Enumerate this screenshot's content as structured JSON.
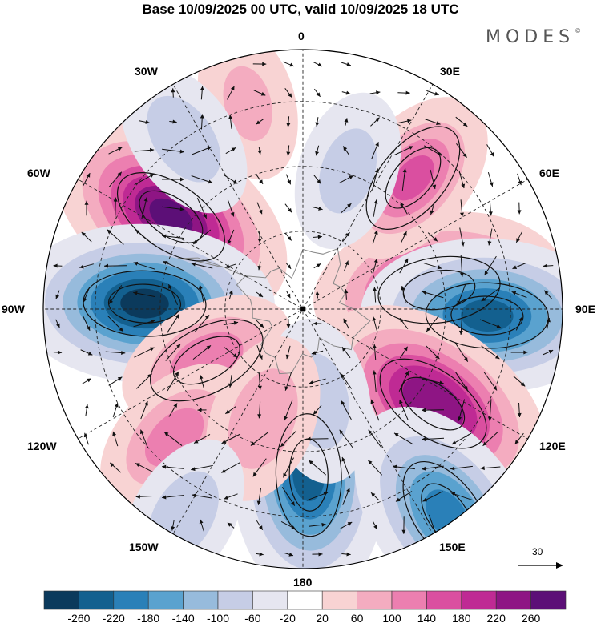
{
  "title": "Base 10/09/2025 00 UTC, valid 10/09/2025 18 UTC",
  "brand": {
    "name": "MODES",
    "mark": "©"
  },
  "longitude_labels": {
    "lon_0": "0",
    "lon_30e": "30E",
    "lon_60e": "60E",
    "lon_90e": "90E",
    "lon_120e": "120E",
    "lon_150e": "150E",
    "lon_180": "180",
    "lon_150w": "150W",
    "lon_120w": "120W",
    "lon_90w": "90W",
    "lon_60w": "60W",
    "lon_30w": "30W"
  },
  "reference_vector": {
    "label": "30"
  },
  "colorbar": {
    "ticks": [
      "-260",
      "-220",
      "-180",
      "-140",
      "-100",
      "-60",
      "-20",
      "20",
      "60",
      "100",
      "140",
      "180",
      "220",
      "260"
    ],
    "colors": [
      "#0b3a5c",
      "#13608f",
      "#2a80b8",
      "#5aa2cf",
      "#97bbdc",
      "#c6cde6",
      "#e6e6f0",
      "#ffffff",
      "#f8d3d3",
      "#f4acc0",
      "#ec7fb0",
      "#da4fa0",
      "#bf2a94",
      "#8e1584",
      "#5c0f77"
    ]
  },
  "field": {
    "projection": "south polar stereographic",
    "features": [
      {
        "name": "positive-anomaly",
        "sign": 1,
        "peak": 260,
        "lon": -55,
        "colat": 0.62
      },
      {
        "name": "negative-anomaly",
        "sign": -1,
        "peak": 260,
        "lon": -88,
        "colat": 0.61
      },
      {
        "name": "positive-anomaly",
        "sign": 1,
        "peak": 220,
        "lon": 82,
        "colat": 0.53
      },
      {
        "name": "negative-anomaly",
        "sign": -1,
        "peak": 220,
        "lon": 92,
        "colat": 0.71
      },
      {
        "name": "positive-anomaly",
        "sign": 1,
        "peak": 240,
        "lon": 126,
        "colat": 0.62
      },
      {
        "name": "negative-anomaly",
        "sign": -1,
        "peak": 220,
        "lon": 178,
        "colat": 0.64
      },
      {
        "name": "negative-anomaly",
        "sign": -1,
        "peak": 180,
        "lon": 145,
        "colat": 0.97
      },
      {
        "name": "positive-anomaly",
        "sign": 1,
        "peak": 140,
        "lon": 40,
        "colat": 0.66
      },
      {
        "name": "positive-anomaly",
        "sign": 1,
        "peak": 120,
        "lon": -118,
        "colat": 0.42
      },
      {
        "name": "positive-anomaly",
        "sign": 1,
        "peak": 110,
        "lon": -135,
        "colat": 0.7
      },
      {
        "name": "positive-anomaly",
        "sign": 1,
        "peak": 60,
        "lon": -15,
        "colat": 0.82
      },
      {
        "name": "negative-anomaly",
        "sign": -1,
        "peak": 80,
        "lon": -35,
        "colat": 0.8
      },
      {
        "name": "negative-anomaly",
        "sign": -1,
        "peak": 70,
        "lon": 18,
        "colat": 0.56
      },
      {
        "name": "negative-anomaly",
        "sign": -1,
        "peak": 80,
        "lon": 170,
        "colat": 0.36
      },
      {
        "name": "positive-anomaly",
        "sign": 1,
        "peak": 90,
        "lon": -160,
        "colat": 0.45
      },
      {
        "name": "negative-anomaly",
        "sign": -1,
        "peak": 80,
        "lon": -150,
        "colat": 0.92
      }
    ]
  }
}
